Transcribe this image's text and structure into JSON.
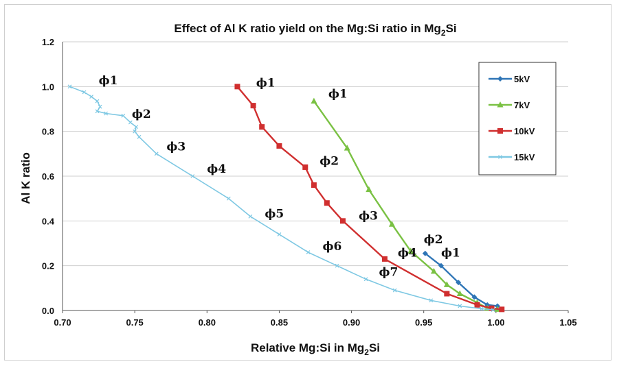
{
  "chart_data": {
    "type": "line",
    "title": {
      "main": "Effect of Al K ratio yield on the Mg:Si ratio in Mg",
      "sub": "2",
      "end": "Si"
    },
    "xlabel": {
      "main": "Relative Mg:Si in Mg",
      "sub": "2",
      "end": "Si"
    },
    "ylabel": "Al K ratio",
    "xlim": [
      0.7,
      1.05
    ],
    "ylim": [
      0.0,
      1.2
    ],
    "xticks": [
      "0.70",
      "0.75",
      "0.80",
      "0.85",
      "0.90",
      "0.95",
      "1.00",
      "1.05"
    ],
    "xtick_values": [
      0.7,
      0.75,
      0.8,
      0.85,
      0.9,
      0.95,
      1.0,
      1.05
    ],
    "yticks": [
      "0.0",
      "0.2",
      "0.4",
      "0.6",
      "0.8",
      "1.0",
      "1.2"
    ],
    "ytick_values": [
      0.0,
      0.2,
      0.4,
      0.6,
      0.8,
      1.0,
      1.2
    ],
    "grid": true,
    "legend_position": "top-right",
    "series": [
      {
        "name": "5kV",
        "color": "#2e75b6",
        "marker": "diamond",
        "x": [
          0.951,
          0.962,
          0.974,
          0.985,
          0.994,
          1.001
        ],
        "y": [
          0.255,
          0.2,
          0.125,
          0.06,
          0.025,
          0.02
        ]
      },
      {
        "name": "7kV",
        "color": "#7ac143",
        "marker": "triangle",
        "x": [
          0.874,
          0.897,
          0.912,
          0.928,
          0.941,
          0.957,
          0.966,
          0.975,
          0.987,
          0.994,
          1.001
        ],
        "y": [
          0.935,
          0.725,
          0.54,
          0.385,
          0.265,
          0.175,
          0.115,
          0.075,
          0.035,
          0.01,
          0.005
        ]
      },
      {
        "name": "10kV",
        "color": "#d02f2f",
        "marker": "square",
        "x": [
          0.821,
          0.832,
          0.838,
          0.85,
          0.868,
          0.874,
          0.883,
          0.894,
          0.923,
          0.966,
          0.987,
          0.997,
          1.004
        ],
        "y": [
          1.0,
          0.915,
          0.82,
          0.735,
          0.64,
          0.56,
          0.48,
          0.4,
          0.23,
          0.075,
          0.025,
          0.01,
          0.005
        ]
      },
      {
        "name": "15kV",
        "color": "#7ec8e3",
        "marker": "x",
        "x": [
          0.705,
          0.715,
          0.72,
          0.724,
          0.726,
          0.724,
          0.73,
          0.742,
          0.747,
          0.751,
          0.75,
          0.753,
          0.765,
          0.79,
          0.815,
          0.83,
          0.85,
          0.87,
          0.89,
          0.91,
          0.93,
          0.955,
          0.975,
          0.99,
          0.998
        ],
        "y": [
          1.0,
          0.975,
          0.955,
          0.935,
          0.91,
          0.89,
          0.88,
          0.87,
          0.84,
          0.82,
          0.8,
          0.775,
          0.7,
          0.6,
          0.5,
          0.42,
          0.34,
          0.26,
          0.2,
          0.14,
          0.09,
          0.045,
          0.02,
          0.008,
          0.003
        ]
      }
    ],
    "annotations": [
      {
        "text": "ϕ1",
        "x": 0.725,
        "y": 1.01
      },
      {
        "text": "ϕ2",
        "x": 0.748,
        "y": 0.86
      },
      {
        "text": "ϕ3",
        "x": 0.772,
        "y": 0.715
      },
      {
        "text": "ϕ4",
        "x": 0.8,
        "y": 0.615
      },
      {
        "text": "ϕ5",
        "x": 0.84,
        "y": 0.415
      },
      {
        "text": "ϕ6",
        "x": 0.88,
        "y": 0.27
      },
      {
        "text": "ϕ7",
        "x": 0.919,
        "y": 0.155
      },
      {
        "text": "ϕ1",
        "x": 0.834,
        "y": 1.0
      },
      {
        "text": "ϕ2",
        "x": 0.878,
        "y": 0.65
      },
      {
        "text": "ϕ3",
        "x": 0.905,
        "y": 0.405
      },
      {
        "text": "ϕ4",
        "x": 0.932,
        "y": 0.24
      },
      {
        "text": "ϕ1",
        "x": 0.884,
        "y": 0.95
      },
      {
        "text": "ϕ2",
        "x": 0.95,
        "y": 0.3
      },
      {
        "text": "ϕ1",
        "x": 0.962,
        "y": 0.24
      }
    ]
  }
}
